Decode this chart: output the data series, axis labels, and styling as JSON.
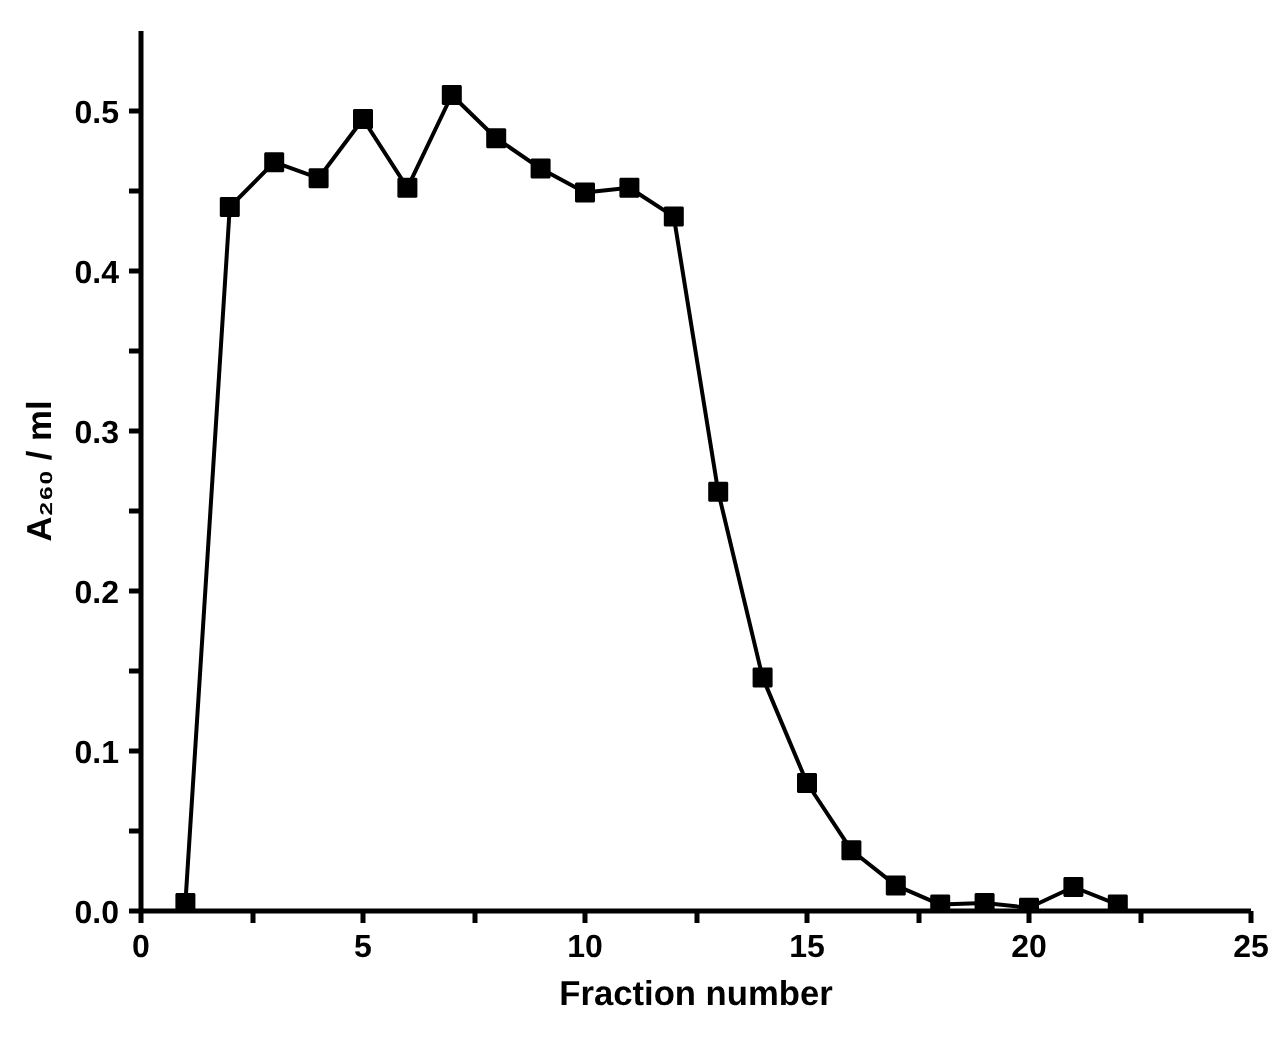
{
  "chart_data": {
    "type": "line",
    "xlabel": "Fraction number",
    "ylabel": "A₂₆₀ / ml",
    "x": [
      1,
      2,
      3,
      4,
      5,
      6,
      7,
      8,
      9,
      10,
      11,
      12,
      13,
      14,
      15,
      16,
      17,
      18,
      19,
      20,
      21,
      22
    ],
    "series": [
      {
        "color": "#000000",
        "values": [
          0.005,
          0.44,
          0.468,
          0.458,
          0.495,
          0.452,
          0.51,
          0.483,
          0.464,
          0.449,
          0.452,
          0.434,
          0.262,
          0.146,
          0.08,
          0.038,
          0.016,
          0.004,
          0.005,
          0.002,
          0.015,
          0.004
        ]
      }
    ],
    "marker": "square",
    "line_style": "solid",
    "grid": false,
    "xlim": [
      0,
      25
    ],
    "ylim": [
      0,
      0.55
    ],
    "xticks": [
      0,
      {
        "value": 2.5,
        "label": null
      },
      5,
      {
        "value": 7.5,
        "label": null
      },
      10,
      {
        "value": 12.5,
        "label": null
      },
      15,
      {
        "value": 17.5,
        "label": null
      },
      20,
      {
        "value": 22.5,
        "label": null
      },
      25
    ],
    "yticks": [
      {
        "value": 0,
        "label": "0.0"
      },
      {
        "value": 0.05,
        "label": null
      },
      0.1,
      {
        "value": 0.15,
        "label": null
      },
      0.2,
      {
        "value": 0.25,
        "label": null
      },
      0.3,
      {
        "value": 0.35,
        "label": null
      },
      0.4,
      {
        "value": 0.45,
        "label": null
      },
      0.5
    ]
  }
}
